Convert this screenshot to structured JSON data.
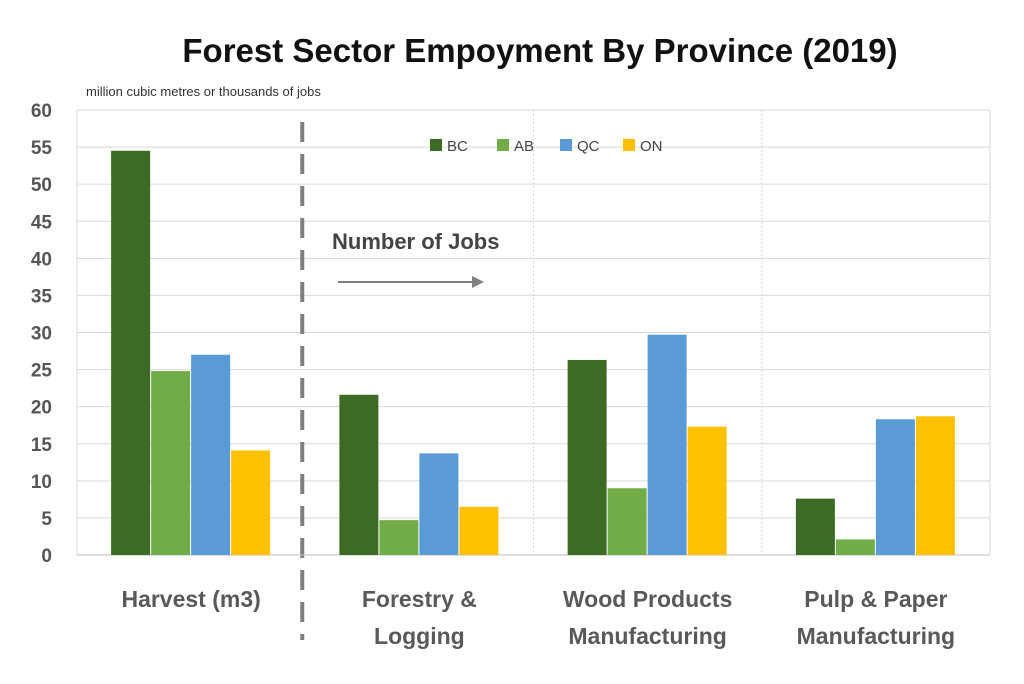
{
  "chart_data": {
    "type": "bar",
    "title": "Forest Sector Empoyment By Province (2019)",
    "ylabel": "million cubic metres or thousands of jobs",
    "ylim": [
      0,
      60
    ],
    "yticks": [
      0,
      5,
      10,
      15,
      20,
      25,
      30,
      35,
      40,
      45,
      50,
      55,
      60
    ],
    "grid": true,
    "legend_position": "top",
    "categories": [
      [
        "Harvest (m3)"
      ],
      [
        "Forestry &",
        "Logging"
      ],
      [
        "Wood Products",
        "Manufacturing"
      ],
      [
        "Pulp & Paper",
        "Manufacturing"
      ]
    ],
    "series": [
      {
        "name": "BC",
        "color": "#3d6b25",
        "values": [
          54.5,
          21.6,
          26.3,
          7.6
        ]
      },
      {
        "name": "AB",
        "color": "#71ad47",
        "values": [
          24.8,
          4.7,
          9.0,
          2.1
        ]
      },
      {
        "name": "QC",
        "color": "#5b9bd5",
        "values": [
          27.0,
          13.7,
          29.7,
          18.3
        ]
      },
      {
        "name": "ON",
        "color": "#ffc000",
        "values": [
          14.1,
          6.5,
          17.3,
          18.7
        ]
      }
    ],
    "annotation": {
      "text": "Number of Jobs",
      "arrow": "right"
    },
    "separator": "dashed-vertical"
  }
}
